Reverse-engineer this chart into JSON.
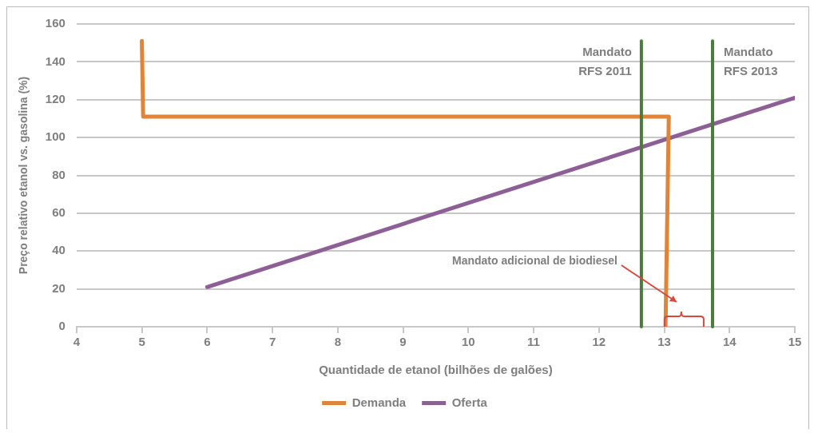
{
  "chart_data": {
    "type": "line",
    "xlabel": "Quantidade de etanol (bilhões de galões)",
    "ylabel": "Preço relativo etanol vs. gasolina (%)",
    "xlim": [
      4,
      15
    ],
    "xticks": [
      4,
      5,
      6,
      7,
      8,
      9,
      10,
      11,
      12,
      13,
      14,
      15
    ],
    "ylim": [
      0,
      160
    ],
    "yticks": [
      0,
      20,
      40,
      60,
      80,
      100,
      120,
      140,
      160
    ],
    "grid": "y",
    "legend": "bottom",
    "marker": "none",
    "line_style": "solid",
    "series": [
      {
        "name": "Demanda",
        "color": "#e0843a",
        "x": [
          5,
          5.02,
          13.07,
          13.02
        ],
        "values": [
          151,
          111,
          111,
          0
        ]
      },
      {
        "name": "Oferta",
        "color": "#8e5f96",
        "x": [
          6,
          15
        ],
        "values": [
          21,
          121
        ]
      }
    ],
    "ref_lines": [
      {
        "axis": "x",
        "value": 12.65,
        "label": "Mandato RFS 2011",
        "color": "#4b7d3a"
      },
      {
        "axis": "x",
        "value": 13.74,
        "label": "Mandato RFS 2013",
        "color": "#4b7d3a"
      }
    ],
    "annotations": [
      "Mandato adicional de biodiesel"
    ]
  }
}
